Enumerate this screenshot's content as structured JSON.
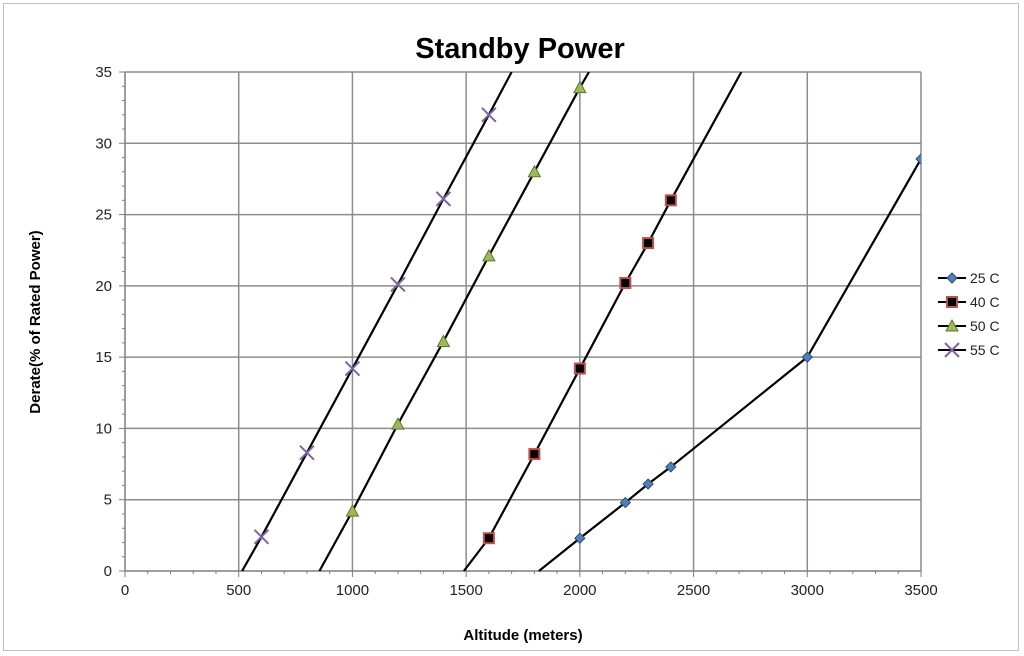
{
  "chart_data": {
    "type": "line",
    "title": "Standby Power",
    "xlabel": "Altitude (meters)",
    "ylabel": "Derate(% of Rated Power)",
    "xlim": [
      0,
      3500
    ],
    "ylim": [
      0,
      35
    ],
    "x_ticks": [
      0,
      500,
      1000,
      1500,
      2000,
      2500,
      3000,
      3500
    ],
    "y_ticks": [
      0,
      5,
      10,
      15,
      20,
      25,
      30,
      35
    ],
    "x_tick_labels": [
      "0",
      "500",
      "1000",
      "1500",
      "2000",
      "2500",
      "3000",
      "3500"
    ],
    "y_tick_labels": [
      "0",
      "5",
      "10",
      "15",
      "20",
      "25",
      "30",
      "35"
    ],
    "grid": true,
    "legend_position": "right",
    "series": [
      {
        "name": "25 C",
        "marker": "diamond",
        "color": "#4f81bd",
        "line": [
          [
            1820,
            0
          ],
          [
            2000,
            2.3
          ],
          [
            2200,
            4.8
          ],
          [
            2300,
            6.1
          ],
          [
            2400,
            7.3
          ],
          [
            3000,
            15
          ],
          [
            3500,
            28.9
          ]
        ],
        "points": [
          [
            2000,
            2.3
          ],
          [
            2200,
            4.8
          ],
          [
            2300,
            6.1
          ],
          [
            2400,
            7.3
          ],
          [
            3000,
            15
          ],
          [
            3500,
            28.9
          ]
        ]
      },
      {
        "name": "40 C",
        "marker": "square",
        "color": "#c0504d",
        "line": [
          [
            1490,
            0
          ],
          [
            1600,
            2.3
          ],
          [
            1800,
            8.2
          ],
          [
            2000,
            14.2
          ],
          [
            2200,
            20.2
          ],
          [
            2300,
            23
          ],
          [
            2400,
            26
          ],
          [
            2710,
            35
          ]
        ],
        "points": [
          [
            1600,
            2.3
          ],
          [
            1800,
            8.2
          ],
          [
            2000,
            14.2
          ],
          [
            2200,
            20.2
          ],
          [
            2300,
            23
          ],
          [
            2400,
            26
          ]
        ]
      },
      {
        "name": "50 C",
        "marker": "triangle",
        "color": "#9bbb59",
        "line": [
          [
            855,
            0
          ],
          [
            1000,
            4.2
          ],
          [
            1200,
            10.3
          ],
          [
            1400,
            16.1
          ],
          [
            1600,
            22.1
          ],
          [
            1800,
            28
          ],
          [
            2000,
            33.9
          ],
          [
            2040,
            35
          ]
        ],
        "points": [
          [
            1000,
            4.2
          ],
          [
            1200,
            10.3
          ],
          [
            1400,
            16.1
          ],
          [
            1600,
            22.1
          ],
          [
            1800,
            28
          ],
          [
            2000,
            33.9
          ]
        ]
      },
      {
        "name": "55 C",
        "marker": "x",
        "color": "#8064a2",
        "line": [
          [
            515,
            0
          ],
          [
            600,
            2.4
          ],
          [
            800,
            8.3
          ],
          [
            1000,
            14.2
          ],
          [
            1200,
            20.1
          ],
          [
            1400,
            26.1
          ],
          [
            1600,
            32
          ],
          [
            1700,
            35
          ]
        ],
        "points": [
          [
            600,
            2.4
          ],
          [
            800,
            8.3
          ],
          [
            1000,
            14.2
          ],
          [
            1200,
            20.1
          ],
          [
            1400,
            26.1
          ],
          [
            1600,
            32
          ]
        ]
      }
    ]
  }
}
